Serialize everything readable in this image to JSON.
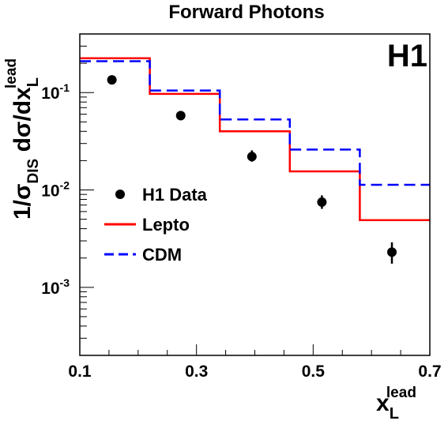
{
  "chart_data": {
    "type": "line",
    "title": "Forward Photons",
    "badge": "H1",
    "xlabel": {
      "main": "x",
      "sub": "L",
      "sup": "lead"
    },
    "ylabel": {
      "p1": "1/",
      "sigma": "σ",
      "sub1": "DIS",
      "p2": " d",
      "sigma2": "σ",
      "p3": "/dx",
      "sub2": "L",
      "sup2": "lead"
    },
    "xlim": [
      0.1,
      0.7
    ],
    "ylim": [
      0.0002,
      0.4
    ],
    "yscale": "log",
    "x_ticks": [
      "0.1",
      "0.3",
      "0.5",
      "0.7"
    ],
    "y_ticks": [
      {
        "value": 0.1,
        "base": "10",
        "exp": "-1"
      },
      {
        "value": 0.01,
        "base": "10",
        "exp": "-2"
      },
      {
        "value": 0.001,
        "base": "10",
        "exp": "-3"
      }
    ],
    "bin_edges": [
      0.1,
      0.22,
      0.34,
      0.46,
      0.58,
      0.7
    ],
    "series": [
      {
        "name": "H1 Data",
        "kind": "points",
        "color": "#000000",
        "x": [
          0.155,
          0.273,
          0.395,
          0.515,
          0.635
        ],
        "y": [
          0.135,
          0.058,
          0.022,
          0.0075,
          0.0023
        ],
        "err_lo": [
          0.122,
          0.052,
          0.0195,
          0.0064,
          0.00175
        ],
        "err_hi": [
          0.148,
          0.064,
          0.0255,
          0.0088,
          0.0029
        ]
      },
      {
        "name": "Lepto",
        "kind": "step",
        "color": "#ff0000",
        "dash": "solid",
        "values": [
          0.225,
          0.097,
          0.04,
          0.0155,
          0.0049
        ]
      },
      {
        "name": "CDM",
        "kind": "step",
        "color": "#0000ff",
        "dash": "dashed",
        "values": [
          0.21,
          0.105,
          0.053,
          0.026,
          0.0113
        ]
      }
    ],
    "legend_position": "middle-left"
  }
}
